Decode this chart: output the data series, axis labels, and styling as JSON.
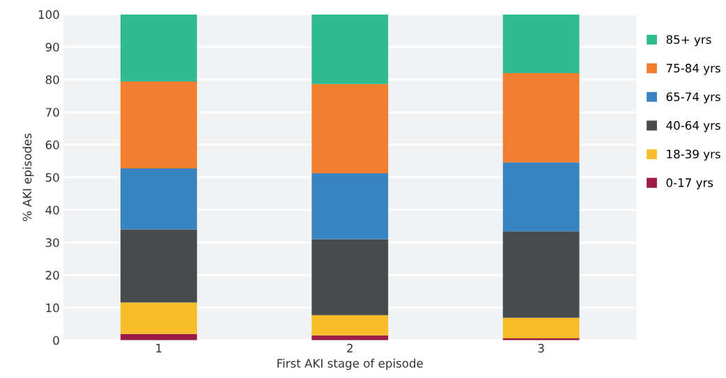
{
  "chart_data": {
    "type": "bar",
    "stacked": true,
    "xlabel": "First AKI stage of episode",
    "ylabel": "% AKI episodes",
    "categories": [
      "1",
      "2",
      "3"
    ],
    "series": [
      {
        "name": "0-17 yrs",
        "color": "#9c1c48",
        "values": [
          1.9,
          1.5,
          0.6
        ]
      },
      {
        "name": "18-39 yrs",
        "color": "#f9bd2a",
        "values": [
          9.7,
          6.2,
          6.3
        ]
      },
      {
        "name": "40-64 yrs",
        "color": "#484b4c",
        "values": [
          22.4,
          23.3,
          26.5
        ]
      },
      {
        "name": "65-74 yrs",
        "color": "#3884c3",
        "values": [
          18.7,
          20.2,
          21.2
        ]
      },
      {
        "name": "75-84 yrs",
        "color": "#f27f30",
        "values": [
          26.7,
          27.4,
          27.4
        ]
      },
      {
        "name": "85+ yrs",
        "color": "#33bb90",
        "values": [
          20.6,
          21.4,
          18.0
        ]
      }
    ],
    "ylim": [
      0,
      100
    ],
    "yticks": [
      0,
      10,
      20,
      30,
      40,
      50,
      60,
      70,
      80,
      90,
      100
    ],
    "grid": "y",
    "legend": "right"
  }
}
